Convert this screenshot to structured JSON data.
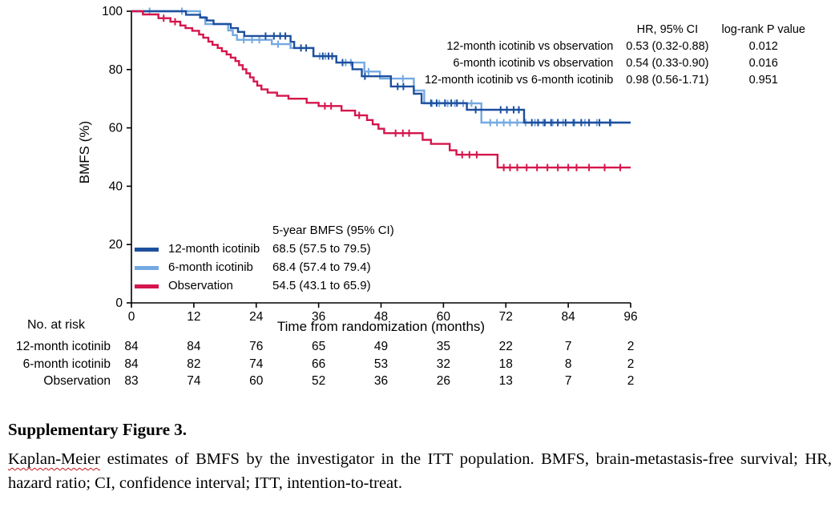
{
  "chart_data": {
    "type": "line",
    "subtype": "kaplan-meier-step",
    "title": "",
    "xlabel": "Time from randomization (months)",
    "ylabel": "BMFS (%)",
    "xlim": [
      0,
      96
    ],
    "ylim": [
      0,
      100
    ],
    "xticks": [
      0,
      12,
      24,
      36,
      48,
      60,
      72,
      84,
      96
    ],
    "yticks": [
      0,
      20,
      40,
      60,
      80,
      100
    ],
    "grid": "off",
    "legend_position": "lower-left-inside",
    "series": [
      {
        "name": "12-month icotinib",
        "color": "#1d4f9e",
        "five_year_bmfs": "68.5 (57.5 to 79.5)",
        "step_points": [
          [
            0,
            100
          ],
          [
            10.5,
            98.8
          ],
          [
            13.2,
            97.8
          ],
          [
            14.5,
            96.8
          ],
          [
            15.8,
            95.6
          ],
          [
            19.1,
            94.2
          ],
          [
            20.5,
            92.9
          ],
          [
            21.7,
            91.5
          ],
          [
            30.6,
            89.5
          ],
          [
            31.3,
            87.4
          ],
          [
            35,
            84.6
          ],
          [
            39.4,
            82.4
          ],
          [
            42.5,
            80.1
          ],
          [
            44.3,
            77.7
          ],
          [
            49.9,
            74.2
          ],
          [
            54.3,
            71.7
          ],
          [
            55.8,
            68.5
          ],
          [
            64.5,
            66.2
          ],
          [
            75.5,
            61.8
          ]
        ],
        "censors": [
          [
            25.8,
            91.5
          ],
          [
            27.4,
            91.5
          ],
          [
            28.6,
            91.5
          ],
          [
            29.6,
            91.5
          ],
          [
            32.6,
            87.4
          ],
          [
            33.6,
            87.4
          ],
          [
            36.8,
            84.6
          ],
          [
            37.9,
            84.6
          ],
          [
            38.6,
            84.6
          ],
          [
            40.6,
            82.4
          ],
          [
            44.9,
            77.7
          ],
          [
            51.2,
            74.2
          ],
          [
            52.3,
            74.2
          ],
          [
            57.6,
            68.5
          ],
          [
            58.7,
            68.5
          ],
          [
            60.3,
            68.5
          ],
          [
            61.5,
            68.5
          ],
          [
            62.6,
            68.5
          ],
          [
            66.2,
            66.2
          ],
          [
            71,
            66.2
          ],
          [
            72.2,
            66.2
          ],
          [
            73.5,
            66.2
          ],
          [
            74.5,
            66.2
          ],
          [
            77,
            61.8
          ],
          [
            78.2,
            61.8
          ],
          [
            79.5,
            61.8
          ],
          [
            80.7,
            61.8
          ],
          [
            82,
            61.8
          ],
          [
            83.5,
            61.8
          ],
          [
            85,
            61.8
          ],
          [
            86.5,
            61.8
          ],
          [
            88,
            61.8
          ],
          [
            90,
            61.8
          ],
          [
            92,
            61.8
          ]
        ]
      },
      {
        "name": "6-month icotinib",
        "color": "#74a9e2",
        "five_year_bmfs": "68.4 (57.4 to 79.4)",
        "step_points": [
          [
            0,
            100
          ],
          [
            13.2,
            98
          ],
          [
            14.2,
            95.6
          ],
          [
            18.6,
            93.4
          ],
          [
            19.5,
            91.8
          ],
          [
            20.3,
            90.2
          ],
          [
            27,
            88.7
          ],
          [
            30.6,
            87.4
          ],
          [
            35,
            84.6
          ],
          [
            39.4,
            82.4
          ],
          [
            44.8,
            79.3
          ],
          [
            47.8,
            76.9
          ],
          [
            54.3,
            72.8
          ],
          [
            56.3,
            68.4
          ],
          [
            67.3,
            61.8
          ]
        ],
        "censors": [
          [
            3.5,
            100
          ],
          [
            9.7,
            100
          ],
          [
            21.6,
            90.2
          ],
          [
            23.2,
            90.2
          ],
          [
            24.6,
            90.2
          ],
          [
            28.2,
            88.7
          ],
          [
            36.2,
            84.6
          ],
          [
            37.3,
            84.6
          ],
          [
            41.2,
            82.4
          ],
          [
            42.2,
            82.4
          ],
          [
            45.6,
            79.3
          ],
          [
            52.2,
            76.9
          ],
          [
            57.8,
            68.4
          ],
          [
            59.2,
            68.4
          ],
          [
            60.8,
            68.4
          ],
          [
            62.2,
            68.4
          ],
          [
            63.8,
            68.4
          ],
          [
            65.4,
            68.4
          ],
          [
            69,
            61.8
          ],
          [
            70.3,
            61.8
          ],
          [
            71.6,
            61.8
          ],
          [
            72.8,
            61.8
          ],
          [
            74.2,
            61.8
          ],
          [
            75.8,
            61.8
          ],
          [
            77.6,
            61.8
          ],
          [
            79.2,
            61.8
          ],
          [
            81,
            61.8
          ],
          [
            83,
            61.8
          ],
          [
            85.2,
            61.8
          ],
          [
            87.2,
            61.8
          ],
          [
            89.5,
            61.8
          ],
          [
            92.2,
            61.8
          ]
        ]
      },
      {
        "name": "Observation",
        "color": "#d4164c",
        "five_year_bmfs": "54.5 (43.1 to 65.9)",
        "step_points": [
          [
            0,
            100
          ],
          [
            2.2,
            98.9
          ],
          [
            5.2,
            97.6
          ],
          [
            7.5,
            96.4
          ],
          [
            9.4,
            95.1
          ],
          [
            10.4,
            94.2
          ],
          [
            11.7,
            93.3
          ],
          [
            13,
            92
          ],
          [
            13.8,
            90.9
          ],
          [
            14.8,
            89.6
          ],
          [
            15.6,
            88.5
          ],
          [
            16.6,
            87.4
          ],
          [
            17.4,
            86.3
          ],
          [
            18.3,
            85.2
          ],
          [
            19.1,
            84.1
          ],
          [
            20,
            82.9
          ],
          [
            20.7,
            81.5
          ],
          [
            21.4,
            80.1
          ],
          [
            22.1,
            78.7
          ],
          [
            22.8,
            77.3
          ],
          [
            23.5,
            75.9
          ],
          [
            24.2,
            74.5
          ],
          [
            25,
            73.2
          ],
          [
            26.2,
            72.1
          ],
          [
            28,
            71
          ],
          [
            30.2,
            70
          ],
          [
            33.7,
            68.6
          ],
          [
            36,
            67.5
          ],
          [
            40.4,
            65.9
          ],
          [
            43,
            64.3
          ],
          [
            45.3,
            62.7
          ],
          [
            46.4,
            61.2
          ],
          [
            47.5,
            59.7
          ],
          [
            48.6,
            58.2
          ],
          [
            56,
            55.9
          ],
          [
            57.6,
            54.5
          ],
          [
            61.2,
            52.3
          ],
          [
            62.5,
            50.8
          ],
          [
            70.4,
            46.4
          ]
        ],
        "censors": [
          [
            6.2,
            97.6
          ],
          [
            8.4,
            96.4
          ],
          [
            37.2,
            67.5
          ],
          [
            38.4,
            67.5
          ],
          [
            43.8,
            64.3
          ],
          [
            50.8,
            58.2
          ],
          [
            52.2,
            58.2
          ],
          [
            53.4,
            58.2
          ],
          [
            63.6,
            50.8
          ],
          [
            65,
            50.8
          ],
          [
            66.4,
            50.8
          ],
          [
            71.6,
            46.4
          ],
          [
            72.8,
            46.4
          ],
          [
            74.2,
            46.4
          ],
          [
            76,
            46.4
          ],
          [
            78,
            46.4
          ],
          [
            80,
            46.4
          ],
          [
            82,
            46.4
          ],
          [
            84,
            46.4
          ],
          [
            85.6,
            46.4
          ],
          [
            88,
            46.4
          ],
          [
            91,
            46.4
          ],
          [
            94,
            46.4
          ]
        ]
      }
    ]
  },
  "hr_table": {
    "col_headers": [
      "HR, 95% CI",
      "log-rank P value"
    ],
    "rows": [
      {
        "comparison": "12-month icotinib vs observation",
        "hr": "0.53 (0.32-0.88)",
        "p": "0.012"
      },
      {
        "comparison": "6-month icotinib vs observation",
        "hr": "0.54 (0.33-0.90)",
        "p": "0.016"
      },
      {
        "comparison": "12-month icotinib vs 6-month icotinib",
        "hr": "0.98 (0.56-1.71)",
        "p": "0.951"
      }
    ]
  },
  "legend": {
    "header": "5-year BMFS (95% CI)",
    "items": [
      {
        "label": "12-month icotinib",
        "value": "68.5 (57.5 to 79.5)",
        "color": "#1d4f9e"
      },
      {
        "label": "6-month icotinib",
        "value": "68.4 (57.4 to 79.4)",
        "color": "#74a9e2"
      },
      {
        "label": "Observation",
        "value": "54.5 (43.1 to 65.9)",
        "color": "#d4164c"
      }
    ]
  },
  "risk_table": {
    "title": "No. at risk",
    "time_points": [
      0,
      12,
      24,
      36,
      48,
      60,
      72,
      84,
      96
    ],
    "rows": [
      {
        "label": "12-month icotinib",
        "counts": [
          "84",
          "84",
          "76",
          "65",
          "49",
          "35",
          "22",
          "7",
          "2"
        ]
      },
      {
        "label": "6-month icotinib",
        "counts": [
          "84",
          "82",
          "74",
          "66",
          "53",
          "32",
          "18",
          "8",
          "2"
        ]
      },
      {
        "label": "Observation",
        "counts": [
          "83",
          "74",
          "60",
          "52",
          "36",
          "26",
          "13",
          "7",
          "2"
        ]
      }
    ]
  },
  "caption": {
    "title": "Supplementary Figure 3.",
    "misspelled_word": "Kaplan-Meier",
    "rest": " estimates of BMFS by the investigator in the ITT population. BMFS, brain-metastasis-free survival; HR, hazard ratio; CI, confidence interval; ITT, intention-to-treat."
  }
}
